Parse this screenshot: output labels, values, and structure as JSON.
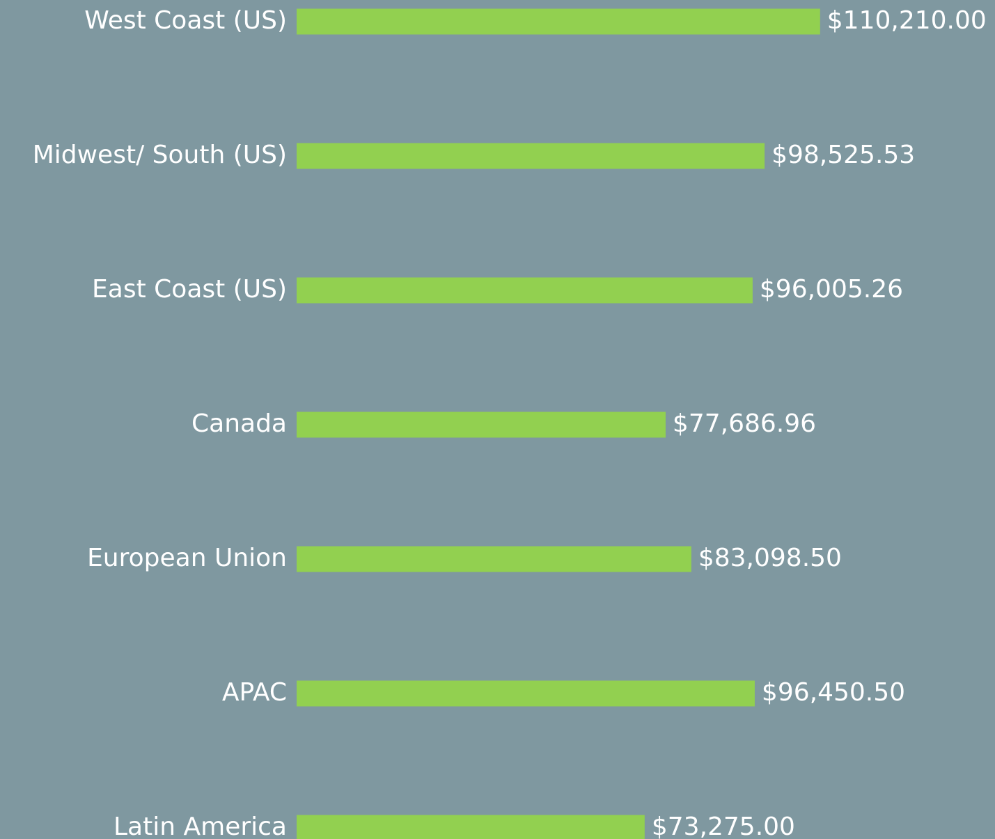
{
  "chart_data": {
    "type": "bar",
    "orientation": "horizontal",
    "categories": [
      "West Coast (US)",
      "Midwest/ South (US)",
      "East Coast (US)",
      "Canada",
      "European Union",
      "APAC",
      "Latin America"
    ],
    "values": [
      110210.0,
      98525.53,
      96005.26,
      77686.96,
      83098.5,
      96450.5,
      73275.0
    ],
    "value_labels": [
      "$110,210.00",
      "$98,525.53",
      "$96,005.26",
      "$77,686.96",
      "$83,098.50",
      "$96,450.50",
      "$73,275.00"
    ],
    "color": "#92d050",
    "xlim": [
      0,
      112000
    ]
  }
}
